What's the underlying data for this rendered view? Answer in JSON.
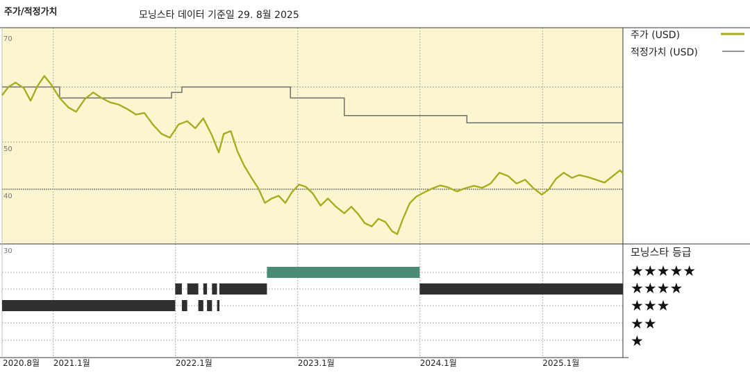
{
  "header": {
    "chart_title": "주가/적정가치",
    "subtitle": "모닝스타 데이터 기준일 29. 8월 2025"
  },
  "legend": {
    "price": "주가 (USD)",
    "fair_value": "적정가치 (USD)"
  },
  "rating_panel": {
    "title": "모닝스타 등급",
    "levels": [
      "★★★★★",
      "★★★★",
      "★★★",
      "★★",
      "★"
    ]
  },
  "colors": {
    "price_line": "#a8ad1f",
    "fair_value_line": "#6e6e6e",
    "plot_background": "#fbf6cf",
    "rating_5star": "#4a8c78",
    "rating_bar": "#2f2f2f"
  },
  "chart_data": [
    {
      "type": "line",
      "y_ticks": [
        30,
        40,
        50,
        70
      ],
      "ylim": [
        30,
        71
      ],
      "x_ticks": [
        "2020.8월",
        "2021.1월",
        "2022.1월",
        "2023.1월",
        "2024.1월",
        "2025.1월"
      ],
      "x_tick_dates": [
        "2020-08-01",
        "2021-01-01",
        "2022-01-01",
        "2023-01-01",
        "2024-01-01",
        "2025-01-01"
      ],
      "xlim": [
        "2020-08-01",
        "2025-08-29"
      ],
      "grid": true,
      "legend_position": "right",
      "series": [
        {
          "name": "주가 (USD)",
          "points": [
            [
              "2020-08-01",
              58.5
            ],
            [
              "2020-08-20",
              60.0
            ],
            [
              "2020-09-10",
              60.8
            ],
            [
              "2020-10-05",
              59.8
            ],
            [
              "2020-10-25",
              57.5
            ],
            [
              "2020-11-15",
              60.2
            ],
            [
              "2020-12-05",
              62.0
            ],
            [
              "2020-12-25",
              60.5
            ],
            [
              "2021-01-20",
              58.0
            ],
            [
              "2021-02-15",
              56.3
            ],
            [
              "2021-03-10",
              55.5
            ],
            [
              "2021-04-05",
              57.8
            ],
            [
              "2021-04-30",
              59.0
            ],
            [
              "2021-05-25",
              58.0
            ],
            [
              "2021-06-20",
              57.2
            ],
            [
              "2021-07-15",
              56.8
            ],
            [
              "2021-08-10",
              56.0
            ],
            [
              "2021-09-05",
              55.0
            ],
            [
              "2021-09-30",
              55.3
            ],
            [
              "2021-10-25",
              53.2
            ],
            [
              "2021-11-20",
              51.5
            ],
            [
              "2021-12-15",
              50.8
            ],
            [
              "2022-01-10",
              53.2
            ],
            [
              "2022-02-05",
              53.8
            ],
            [
              "2022-03-01",
              52.5
            ],
            [
              "2022-03-25",
              54.3
            ],
            [
              "2022-04-20",
              51.2
            ],
            [
              "2022-05-10",
              47.8
            ],
            [
              "2022-05-25",
              51.5
            ],
            [
              "2022-06-15",
              52.0
            ],
            [
              "2022-07-05",
              48.0
            ],
            [
              "2022-07-25",
              45.0
            ],
            [
              "2022-08-15",
              42.5
            ],
            [
              "2022-09-05",
              40.2
            ],
            [
              "2022-09-25",
              37.5
            ],
            [
              "2022-10-15",
              38.3
            ],
            [
              "2022-11-05",
              38.8
            ],
            [
              "2022-11-25",
              37.5
            ],
            [
              "2022-12-15",
              39.5
            ],
            [
              "2023-01-05",
              41.0
            ],
            [
              "2023-01-25",
              40.5
            ],
            [
              "2023-02-15",
              39.2
            ],
            [
              "2023-03-10",
              37.0
            ],
            [
              "2023-04-01",
              38.3
            ],
            [
              "2023-04-25",
              36.8
            ],
            [
              "2023-05-20",
              35.6
            ],
            [
              "2023-06-10",
              36.8
            ],
            [
              "2023-07-01",
              35.4
            ],
            [
              "2023-07-20",
              33.8
            ],
            [
              "2023-08-10",
              33.2
            ],
            [
              "2023-08-30",
              34.6
            ],
            [
              "2023-09-20",
              34.0
            ],
            [
              "2023-10-10",
              32.3
            ],
            [
              "2023-10-25",
              31.8
            ],
            [
              "2023-11-10",
              34.4
            ],
            [
              "2023-12-01",
              37.4
            ],
            [
              "2023-12-20",
              38.6
            ],
            [
              "2024-01-10",
              39.3
            ],
            [
              "2024-02-05",
              40.1
            ],
            [
              "2024-03-01",
              40.8
            ],
            [
              "2024-03-25",
              40.4
            ],
            [
              "2024-04-20",
              39.6
            ],
            [
              "2024-05-15",
              40.2
            ],
            [
              "2024-06-10",
              40.7
            ],
            [
              "2024-07-05",
              40.3
            ],
            [
              "2024-07-30",
              41.2
            ],
            [
              "2024-08-25",
              43.5
            ],
            [
              "2024-09-20",
              42.8
            ],
            [
              "2024-10-15",
              41.2
            ],
            [
              "2024-11-10",
              42.0
            ],
            [
              "2024-12-05",
              40.2
            ],
            [
              "2024-12-30",
              39.0
            ],
            [
              "2025-01-20",
              40.0
            ],
            [
              "2025-02-10",
              42.2
            ],
            [
              "2025-03-05",
              43.5
            ],
            [
              "2025-03-30",
              42.4
            ],
            [
              "2025-04-20",
              43.0
            ],
            [
              "2025-05-15",
              42.6
            ],
            [
              "2025-06-10",
              42.0
            ],
            [
              "2025-07-05",
              41.4
            ],
            [
              "2025-07-30",
              42.8
            ],
            [
              "2025-08-20",
              44.0
            ],
            [
              "2025-08-29",
              43.4
            ]
          ]
        },
        {
          "name": "적정가치 (USD)",
          "points": [
            [
              "2020-08-01",
              60.0
            ],
            [
              "2021-01-20",
              60.0
            ],
            [
              "2021-01-20",
              58.0
            ],
            [
              "2021-12-20",
              58.0
            ],
            [
              "2021-12-20",
              59.0
            ],
            [
              "2022-01-20",
              59.0
            ],
            [
              "2022-01-20",
              60.0
            ],
            [
              "2022-12-10",
              60.0
            ],
            [
              "2022-12-10",
              58.0
            ],
            [
              "2023-05-20",
              58.0
            ],
            [
              "2023-05-20",
              54.8
            ],
            [
              "2024-05-20",
              54.8
            ],
            [
              "2024-05-20",
              53.5
            ],
            [
              "2025-08-29",
              53.5
            ]
          ]
        }
      ]
    },
    {
      "type": "timeline",
      "title": "모닝스타 등급",
      "levels": [
        "★★★★★",
        "★★★★",
        "★★★",
        "★★",
        "★"
      ],
      "segments": [
        {
          "stars": 3,
          "start": "2020-08-01",
          "end": "2021-12-31"
        },
        {
          "stars": 4,
          "start": "2021-12-31",
          "end": "2022-01-20"
        },
        {
          "stars": 3,
          "start": "2022-01-20",
          "end": "2022-02-05"
        },
        {
          "stars": 4,
          "start": "2022-02-05",
          "end": "2022-03-10"
        },
        {
          "stars": 3,
          "start": "2022-03-10",
          "end": "2022-03-25"
        },
        {
          "stars": 4,
          "start": "2022-03-25",
          "end": "2022-04-05"
        },
        {
          "stars": 3,
          "start": "2022-04-05",
          "end": "2022-04-20"
        },
        {
          "stars": 4,
          "start": "2022-04-20",
          "end": "2022-05-05"
        },
        {
          "stars": 3,
          "start": "2022-05-05",
          "end": "2022-05-12"
        },
        {
          "stars": 4,
          "start": "2022-05-12",
          "end": "2022-10-01"
        },
        {
          "stars": 5,
          "start": "2022-10-01",
          "end": "2023-12-31"
        },
        {
          "stars": 4,
          "start": "2023-12-31",
          "end": "2025-08-29"
        }
      ]
    }
  ]
}
